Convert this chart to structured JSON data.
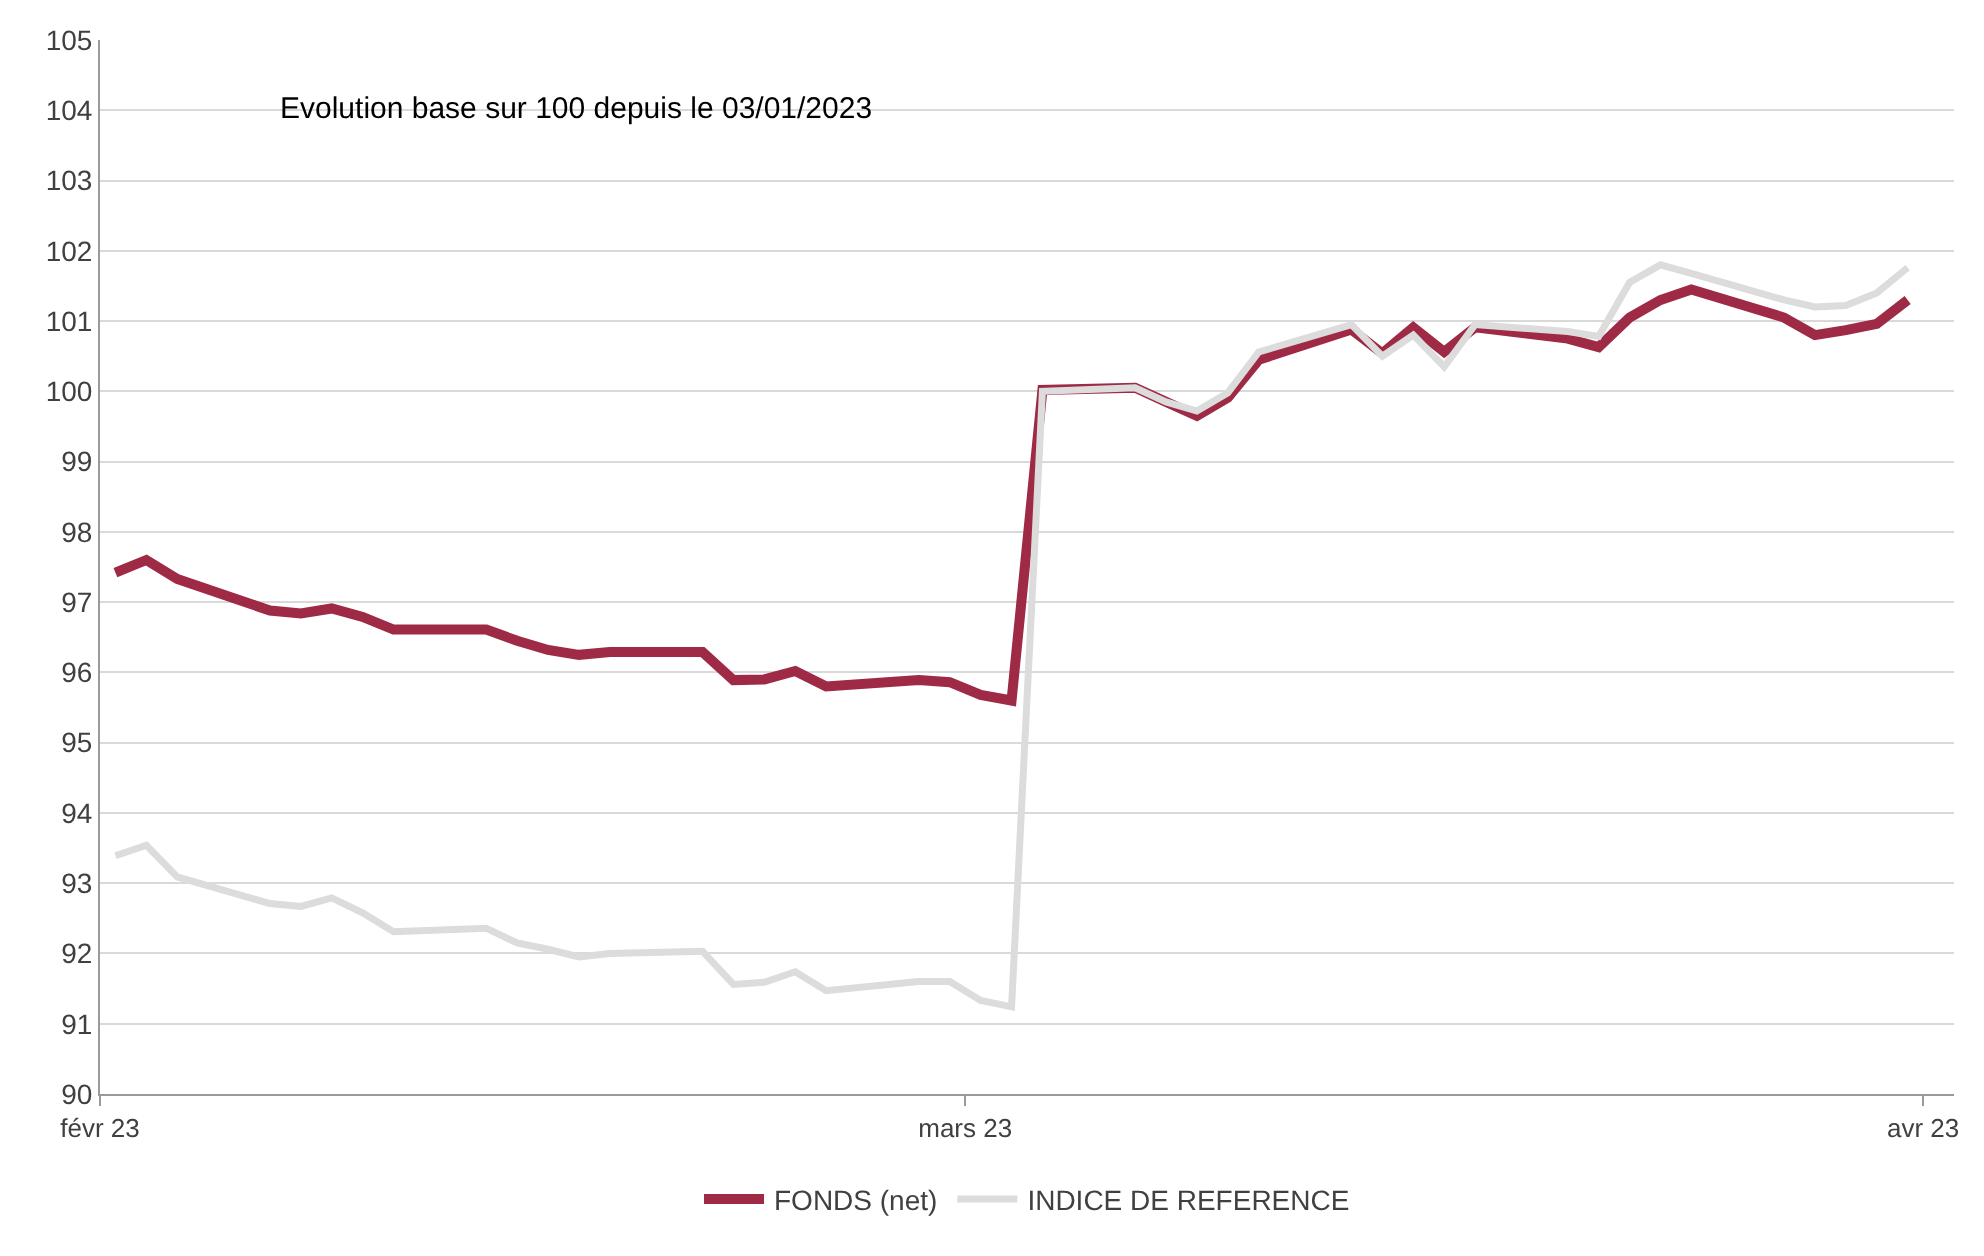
{
  "chart_data": {
    "type": "line",
    "title": "Evolution base sur 100 depuis le 03/01/2023",
    "x": [
      "2023-02-01T12:00",
      "2023-02-02T12:00",
      "2023-02-03T12:00",
      "2023-02-06T12:00",
      "2023-02-07T12:00",
      "2023-02-08T12:00",
      "2023-02-09T12:00",
      "2023-02-10T12:00",
      "2023-02-13T12:00",
      "2023-02-14T12:00",
      "2023-02-15T12:00",
      "2023-02-16T12:00",
      "2023-02-17T12:00",
      "2023-02-20T12:00",
      "2023-02-21T12:00",
      "2023-02-22T12:00",
      "2023-02-23T12:00",
      "2023-02-24T12:00",
      "2023-02-27T12:00",
      "2023-02-28T12:00",
      "2023-03-01T12:00",
      "2023-03-02T12:00",
      "2023-03-03T12:00",
      "2023-03-06T12:00",
      "2023-03-07T12:00",
      "2023-03-08T12:00",
      "2023-03-09T12:00",
      "2023-03-10T12:00",
      "2023-03-13T12:00",
      "2023-03-14T12:00",
      "2023-03-15T12:00",
      "2023-03-16T12:00",
      "2023-03-17T12:00",
      "2023-03-20T12:00",
      "2023-03-21T12:00",
      "2023-03-22T12:00",
      "2023-03-23T12:00",
      "2023-03-24T12:00",
      "2023-03-27T12:00",
      "2023-03-28T12:00",
      "2023-03-29T12:00",
      "2023-03-30T12:00",
      "2023-03-31T12:00"
    ],
    "series": [
      {
        "name": "FONDS (net)",
        "color": "#9e2a45",
        "values": [
          97.42,
          97.6,
          97.33,
          96.88,
          96.84,
          96.91,
          96.79,
          96.61,
          96.61,
          96.45,
          96.32,
          96.25,
          96.29,
          96.29,
          95.89,
          95.9,
          96.02,
          95.8,
          95.89,
          95.86,
          95.68,
          95.6,
          100.02,
          100.05,
          99.85,
          99.65,
          99.91,
          100.45,
          100.88,
          100.54,
          100.91,
          100.56,
          100.91,
          100.75,
          100.63,
          101.05,
          101.3,
          101.45,
          101.05,
          100.8,
          100.87,
          100.96,
          101.3
        ]
      },
      {
        "name": "INDICE DE REFERENCE",
        "color": "#dcdcdc",
        "values": [
          93.39,
          93.54,
          93.09,
          92.71,
          92.67,
          92.79,
          92.58,
          92.31,
          92.36,
          92.15,
          92.06,
          91.95,
          92.0,
          92.03,
          91.56,
          91.59,
          91.74,
          91.47,
          91.6,
          91.6,
          91.33,
          91.24,
          100.0,
          100.05,
          99.85,
          99.72,
          99.98,
          100.56,
          100.95,
          100.5,
          100.8,
          100.35,
          100.95,
          100.85,
          100.78,
          101.55,
          101.8,
          101.68,
          101.3,
          101.2,
          101.22,
          101.4,
          101.76
        ]
      }
    ],
    "xlim": [
      "2023-02-01",
      "2023-04-02"
    ],
    "xticks": [
      {
        "value": "2023-02-01",
        "label": "févr 23"
      },
      {
        "value": "2023-03-01",
        "label": "mars 23"
      },
      {
        "value": "2023-04-01",
        "label": "avr 23"
      }
    ],
    "ylim": [
      90,
      105
    ],
    "yticks": [
      90,
      91,
      92,
      93,
      94,
      95,
      96,
      97,
      98,
      99,
      100,
      101,
      102,
      103,
      104,
      105
    ],
    "grid": "y",
    "legend": "bottom",
    "marker": "none",
    "line_style": "solid"
  }
}
